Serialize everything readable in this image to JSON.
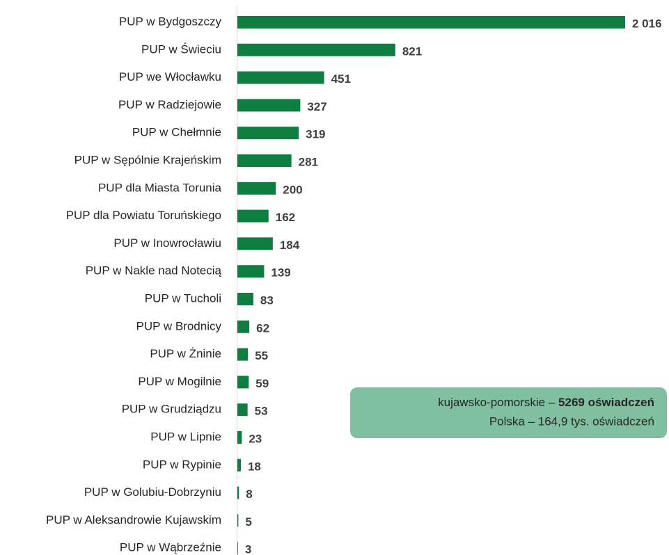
{
  "chart_data": {
    "type": "bar",
    "orientation": "horizontal",
    "color": "#0e7d3f",
    "categories": [
      "PUP w Bydgoszczy",
      "PUP w Świeciu",
      "PUP we Włocławku",
      "PUP w Radziejowie",
      "PUP w Chełmnie",
      "PUP w Sępólnie Krajeńskim",
      "PUP dla Miasta Torunia",
      "PUP dla Powiatu Toruńskiego",
      "PUP w Inowrocławiu",
      "PUP w Nakle nad Notecią",
      "PUP w Tucholi",
      "PUP w Brodnicy",
      "PUP w Żninie",
      "PUP w Mogilnie",
      "PUP w Grudziądzu",
      "PUP w Lipnie",
      "PUP w Rypinie",
      "PUP w Golubiu-Dobrzyniu",
      "PUP w Aleksandrowie Kujawskim",
      "PUP w Wąbrzeźnie"
    ],
    "values": [
      2016,
      821,
      451,
      327,
      319,
      281,
      200,
      162,
      184,
      139,
      83,
      62,
      55,
      59,
      53,
      23,
      18,
      8,
      5,
      3
    ],
    "value_labels": [
      "2 016",
      "821",
      "451",
      "327",
      "319",
      "281",
      "200",
      "162",
      "184",
      "139",
      "83",
      "62",
      "55",
      "59",
      "53",
      "23",
      "18",
      "8",
      "5",
      "3"
    ],
    "xlim": [
      0,
      2016
    ],
    "annotation": {
      "text": "kujawsko-pomorskie – ",
      "bold": "5269 oświadczeń",
      "line2": "Polska – 164,9 tys. oświadczeń"
    }
  }
}
